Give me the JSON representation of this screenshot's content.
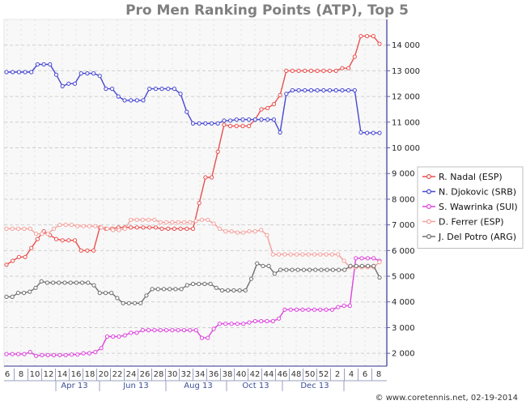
{
  "credit": "© www.coretennis.net, 02-19-2014",
  "chart_data": {
    "type": "line",
    "title": "Pro Men Ranking Points (ATP), Top 5",
    "xlabel": "",
    "ylabel": "",
    "ylim": [
      1500,
      15000
    ],
    "yticks": [
      2000,
      3000,
      4000,
      5000,
      6000,
      7000,
      8000,
      9000,
      10000,
      11000,
      12000,
      13000,
      14000
    ],
    "ytick_labels": [
      "2 000",
      "3 000",
      "4 000",
      "5 000",
      "6 000",
      "7 000",
      "8 000",
      "9 000",
      "10 000",
      "11 000",
      "12 000",
      "13 000",
      "14 000"
    ],
    "x_tick_labels": [
      "6",
      "8",
      "10",
      "12",
      "14",
      "16",
      "18",
      "20",
      "22",
      "24",
      "26",
      "28",
      "30",
      "32",
      "34",
      "36",
      "38",
      "40",
      "42",
      "44",
      "46",
      "48",
      "50",
      "52",
      "2",
      "4",
      "6",
      "8"
    ],
    "month_labels": [
      "Apr 13",
      "Jun 13",
      "Aug 13",
      "Oct 13",
      "Dec 13"
    ],
    "grid": true,
    "legend_position": "right",
    "series": [
      {
        "name": "R. Nadal (ESP)",
        "color": "#e8504f",
        "values": [
          5450,
          5600,
          5750,
          5750,
          6100,
          6450,
          6750,
          6600,
          6450,
          6400,
          6400,
          6400,
          6000,
          6000,
          6000,
          6900,
          6850,
          6850,
          6900,
          6900,
          6900,
          6900,
          6900,
          6900,
          6900,
          6850,
          6850,
          6850,
          6850,
          6850,
          6850,
          7850,
          8850,
          8850,
          9850,
          10900,
          10850,
          10850,
          10850,
          10850,
          11100,
          11500,
          11550,
          11700,
          12050,
          13000,
          13000,
          13000,
          13000,
          13000,
          13000,
          13000,
          13000,
          13000,
          13100,
          13100,
          13550,
          14350,
          14350,
          14350,
          14050
        ]
      },
      {
        "name": "N. Djokovic (SRB)",
        "color": "#4747d1",
        "values": [
          12950,
          12950,
          12950,
          12950,
          12950,
          13250,
          13250,
          13250,
          12850,
          12400,
          12500,
          12500,
          12900,
          12900,
          12900,
          12800,
          12300,
          12300,
          12000,
          11850,
          11850,
          11850,
          11850,
          12300,
          12300,
          12300,
          12300,
          12300,
          12100,
          11400,
          10950,
          10950,
          10950,
          10950,
          10950,
          11060,
          11060,
          11100,
          11100,
          11100,
          11100,
          11100,
          11100,
          11100,
          10600,
          12100,
          12240,
          12240,
          12240,
          12240,
          12240,
          12240,
          12240,
          12240,
          12240,
          12240,
          12240,
          10600,
          10580,
          10580,
          10580
        ]
      },
      {
        "name": "S. Wawrinka (SUI)",
        "color": "#dd44dd",
        "values": [
          1970,
          1970,
          1970,
          1970,
          2050,
          1900,
          1930,
          1930,
          1930,
          1930,
          1930,
          1950,
          1950,
          2000,
          2000,
          2050,
          2200,
          2650,
          2650,
          2650,
          2700,
          2800,
          2800,
          2900,
          2900,
          2900,
          2900,
          2900,
          2900,
          2900,
          2900,
          2900,
          2900,
          2600,
          2600,
          2950,
          3150,
          3150,
          3150,
          3150,
          3150,
          3200,
          3250,
          3250,
          3250,
          3250,
          3350,
          3700,
          3700,
          3700,
          3700,
          3700,
          3700,
          3700,
          3700,
          3700,
          3800,
          3850,
          3850,
          5700,
          5700,
          5700,
          5700,
          5600
        ]
      },
      {
        "name": "D. Ferrer (ESP)",
        "color": "#f3a09c",
        "values": [
          6850,
          6850,
          6850,
          6850,
          6850,
          6650,
          6650,
          6650,
          6850,
          7000,
          7000,
          7000,
          6950,
          6950,
          6950,
          6950,
          6900,
          6850,
          6800,
          6800,
          6850,
          7200,
          7200,
          7200,
          7200,
          7200,
          7100,
          7100,
          7100,
          7100,
          7100,
          7100,
          7150,
          7200,
          7200,
          7050,
          6850,
          6750,
          6750,
          6700,
          6700,
          6750,
          6750,
          6800,
          6600,
          5850,
          5850,
          5850,
          5850,
          5850,
          5850,
          5850,
          5850,
          5850,
          5850,
          5850,
          5850,
          5600,
          5350,
          5350,
          5350,
          5350,
          5350,
          5550
        ]
      },
      {
        "name": "J. Del Potro (ARG)",
        "color": "#707070",
        "values": [
          4200,
          4200,
          4350,
          4350,
          4400,
          4550,
          4800,
          4750,
          4750,
          4750,
          4750,
          4750,
          4750,
          4750,
          4750,
          4650,
          4350,
          4350,
          4350,
          4150,
          3950,
          3950,
          3950,
          3950,
          4250,
          4500,
          4500,
          4500,
          4500,
          4500,
          4500,
          4650,
          4700,
          4700,
          4700,
          4700,
          4550,
          4450,
          4450,
          4450,
          4450,
          4450,
          4900,
          5500,
          5400,
          5400,
          5100,
          5250,
          5250,
          5250,
          5250,
          5250,
          5250,
          5250,
          5250,
          5250,
          5250,
          5250,
          5250,
          5400,
          5400,
          5400,
          5400,
          5400,
          4950
        ]
      }
    ]
  }
}
